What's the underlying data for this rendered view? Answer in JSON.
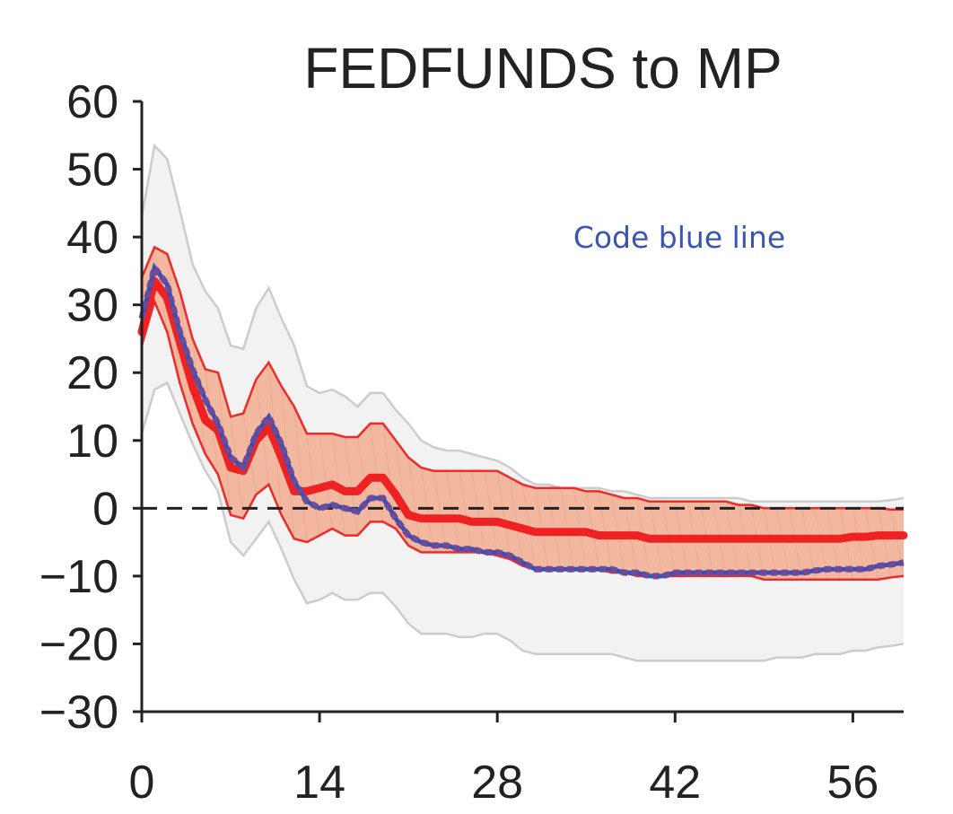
{
  "chart_data": {
    "type": "line",
    "title": "FEDFUNDS to MP",
    "xlabel": "",
    "ylabel": "",
    "xlim": [
      0,
      60
    ],
    "ylim": [
      -30,
      60
    ],
    "x_ticks": [
      0,
      14,
      28,
      42,
      56
    ],
    "x_tick_labels": [
      "0",
      "14",
      "28",
      "42",
      "56"
    ],
    "y_ticks": [
      60,
      50,
      40,
      30,
      20,
      10,
      0,
      -10,
      -20,
      -30
    ],
    "y_tick_labels": [
      "60",
      "50",
      "40",
      "30",
      "20",
      "10",
      "0",
      "−10",
      "−20",
      "−30"
    ],
    "zero_line": true,
    "grid": false,
    "legend": "none",
    "annotation": "Code blue line",
    "colors": {
      "outer_band_fill": "#f2f2f2",
      "outer_band_edge": "#cccccc",
      "inner_band_fill": "#f2b8a0",
      "inner_band_edge": "#ee2a2a",
      "median_line": "#ee2222",
      "code_line": "#6e4b94",
      "code_line_under": "#3a4fb8",
      "annotation": "#3a55b4",
      "zero_line": "#222222",
      "axis": "#222222"
    },
    "x": [
      0,
      1,
      2,
      3,
      4,
      5,
      6,
      7,
      8,
      9,
      10,
      11,
      12,
      13,
      14,
      15,
      16,
      17,
      18,
      19,
      20,
      21,
      22,
      23,
      24,
      25,
      26,
      27,
      28,
      29,
      30,
      31,
      32,
      33,
      34,
      35,
      36,
      37,
      38,
      39,
      40,
      41,
      42,
      43,
      44,
      45,
      46,
      47,
      48,
      49,
      50,
      51,
      52,
      53,
      54,
      55,
      56,
      57,
      58,
      59,
      60
    ],
    "series": [
      {
        "role": "outer_band_upper",
        "values": [
          43,
          53.5,
          51.5,
          44,
          36,
          32,
          29.5,
          24,
          23.5,
          29.5,
          32.5,
          28,
          24,
          18,
          17,
          17.5,
          16.5,
          15,
          17,
          17,
          14.5,
          12.5,
          10,
          9,
          8.5,
          8.5,
          8,
          7.5,
          7,
          6,
          4.5,
          3.5,
          3.5,
          3,
          3,
          3,
          3,
          2.5,
          2.5,
          2,
          1.5,
          1.5,
          1.5,
          1.5,
          1.5,
          1.5,
          1.5,
          1.5,
          1,
          1,
          1,
          1,
          1,
          1,
          1,
          1,
          1,
          1,
          1,
          1.2,
          1.5
        ]
      },
      {
        "role": "outer_band_lower",
        "values": [
          11,
          17.5,
          18.5,
          14,
          9.5,
          5.5,
          2.5,
          -5,
          -7,
          -4.5,
          -2,
          -6,
          -10.5,
          -14,
          -13.5,
          -12.5,
          -13.5,
          -13.5,
          -12.5,
          -12.5,
          -14.5,
          -17,
          -18.5,
          -18.5,
          -18.5,
          -19,
          -19,
          -18.5,
          -18.5,
          -19.5,
          -21,
          -21.5,
          -21.5,
          -21.5,
          -21.5,
          -21.5,
          -21.5,
          -21.5,
          -22,
          -22.5,
          -22.5,
          -22.5,
          -22.5,
          -22.5,
          -22.5,
          -22.5,
          -22.5,
          -22.5,
          -22.5,
          -22.5,
          -22,
          -22,
          -22,
          -21.5,
          -21.5,
          -21.5,
          -21,
          -21,
          -20.5,
          -20.3,
          -20
        ]
      },
      {
        "role": "inner_band_upper",
        "values": [
          34,
          38.5,
          37.5,
          32,
          25,
          20.5,
          20,
          13.5,
          14,
          19,
          21.5,
          18,
          15,
          11,
          11,
          11,
          10.5,
          10.5,
          12.5,
          12.5,
          10,
          7.5,
          6,
          5.5,
          5.5,
          5.5,
          5.5,
          5.5,
          5.5,
          4.5,
          3.5,
          3,
          3,
          3,
          3,
          2.5,
          2.5,
          2,
          1.5,
          1.5,
          1,
          1,
          1,
          1,
          1,
          1,
          1,
          0.5,
          0.5,
          0,
          0,
          0,
          0,
          0,
          0,
          0,
          0,
          0,
          0,
          -0.2,
          -0.2
        ]
      },
      {
        "role": "inner_band_lower",
        "values": [
          24,
          30.5,
          26,
          18.5,
          12.5,
          8,
          5,
          -1,
          -1.5,
          2,
          3.5,
          -1,
          -4.5,
          -5,
          -4,
          -3,
          -4,
          -4,
          -2,
          -2,
          -3,
          -5.5,
          -6.5,
          -6.5,
          -6.5,
          -6.5,
          -6.5,
          -6.5,
          -7,
          -7.5,
          -8.5,
          -9,
          -9,
          -9,
          -9,
          -9,
          -9,
          -9.5,
          -9.5,
          -10,
          -10,
          -10,
          -10,
          -10,
          -10,
          -10,
          -10,
          -10,
          -10,
          -10.5,
          -10.5,
          -10.5,
          -10.5,
          -10.5,
          -10.5,
          -10.5,
          -10.5,
          -10.5,
          -10.5,
          -10.2,
          -10
        ]
      },
      {
        "role": "median",
        "values": [
          26,
          33.5,
          31,
          24.5,
          18,
          13,
          11.5,
          6,
          5.5,
          10,
          12,
          7.5,
          2.5,
          2.5,
          3,
          3.5,
          2.5,
          2.5,
          4.5,
          4.5,
          2,
          -1,
          -1.5,
          -1.5,
          -1.5,
          -1.5,
          -2,
          -2,
          -2,
          -2.5,
          -3,
          -3.5,
          -3.5,
          -3.5,
          -3.5,
          -3.5,
          -4,
          -4,
          -4,
          -4,
          -4.5,
          -4.5,
          -4.5,
          -4.5,
          -4.5,
          -4.5,
          -4.5,
          -4.5,
          -4.5,
          -4.5,
          -4.5,
          -4.5,
          -4.5,
          -4.5,
          -4.5,
          -4.5,
          -4.2,
          -4.2,
          -4,
          -4,
          -4
        ]
      },
      {
        "role": "code_line",
        "values": [
          28,
          35.5,
          33,
          26,
          20.5,
          16,
          12.5,
          7.5,
          6,
          11,
          13.5,
          9.5,
          4,
          1,
          0,
          0.5,
          0,
          -0.5,
          1.5,
          1.5,
          -1.5,
          -4,
          -5,
          -5.5,
          -5.5,
          -6,
          -6,
          -6.5,
          -6.5,
          -7,
          -8,
          -9,
          -9,
          -9,
          -9,
          -9,
          -9,
          -9,
          -9.5,
          -9.5,
          -10,
          -10,
          -9.5,
          -9.5,
          -9.5,
          -9.5,
          -9.5,
          -9.5,
          -9.5,
          -9.5,
          -9.5,
          -9.5,
          -9.5,
          -9.2,
          -9,
          -9,
          -9,
          -9,
          -8.5,
          -8.3,
          -8
        ]
      }
    ]
  }
}
